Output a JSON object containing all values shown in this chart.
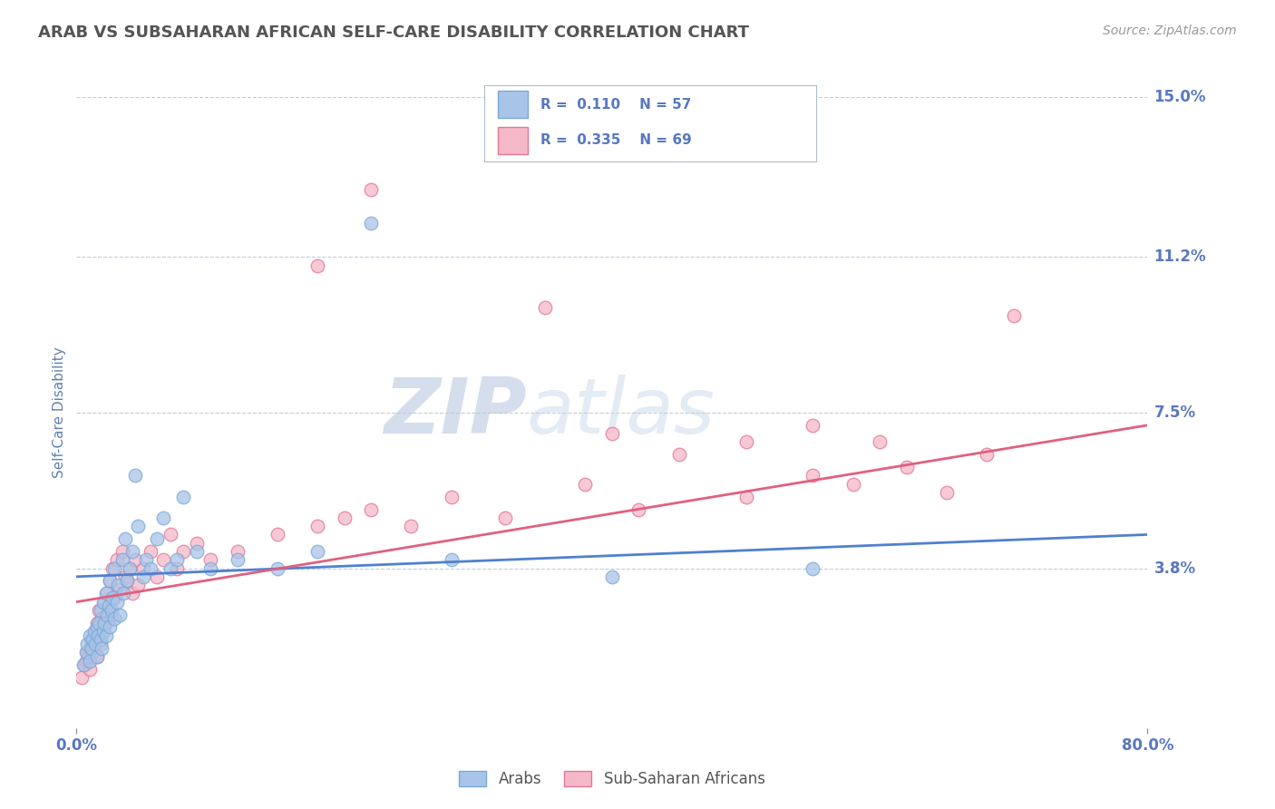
{
  "title": "ARAB VS SUBSAHARAN AFRICAN SELF-CARE DISABILITY CORRELATION CHART",
  "source_text": "Source: ZipAtlas.com",
  "ylabel": "Self-Care Disability",
  "xlim": [
    0.0,
    0.8
  ],
  "ylim": [
    0.0,
    0.15
  ],
  "yticks": [
    0.038,
    0.075,
    0.112,
    0.15
  ],
  "ytick_labels": [
    "3.8%",
    "7.5%",
    "11.2%",
    "15.0%"
  ],
  "xticks": [
    0.0,
    0.8
  ],
  "xtick_labels": [
    "0.0%",
    "80.0%"
  ],
  "arab_color": "#a8c4e8",
  "arab_edge": "#7aaad8",
  "subsaharan_color": "#f5b8c8",
  "subsaharan_edge": "#e07898",
  "line_arab": "#5080d0",
  "line_sub": "#e06080",
  "arab_R": 0.11,
  "arab_N": 57,
  "subsaharan_R": 0.335,
  "subsaharan_N": 69,
  "legend_label_arab": "Arabs",
  "legend_label_subsaharan": "Sub-Saharan Africans",
  "watermark_zip": "ZIP",
  "watermark_atlas": "atlas",
  "background_color": "#ffffff",
  "grid_color": "#c0ccdd",
  "title_color": "#555555",
  "axis_label_color": "#6080b0",
  "tick_label_color": "#5878c0",
  "source_color": "#999999",
  "arab_scatter_x": [
    0.005,
    0.007,
    0.008,
    0.01,
    0.01,
    0.011,
    0.012,
    0.013,
    0.014,
    0.015,
    0.015,
    0.016,
    0.017,
    0.018,
    0.018,
    0.019,
    0.02,
    0.02,
    0.021,
    0.022,
    0.022,
    0.023,
    0.024,
    0.025,
    0.025,
    0.026,
    0.027,
    0.028,
    0.028,
    0.03,
    0.031,
    0.032,
    0.034,
    0.035,
    0.036,
    0.038,
    0.04,
    0.042,
    0.044,
    0.046,
    0.05,
    0.052,
    0.055,
    0.06,
    0.065,
    0.07,
    0.075,
    0.08,
    0.09,
    0.1,
    0.12,
    0.15,
    0.18,
    0.22,
    0.28,
    0.4,
    0.55
  ],
  "arab_scatter_y": [
    0.015,
    0.018,
    0.02,
    0.016,
    0.022,
    0.019,
    0.021,
    0.023,
    0.02,
    0.017,
    0.024,
    0.022,
    0.025,
    0.021,
    0.028,
    0.019,
    0.023,
    0.03,
    0.025,
    0.022,
    0.032,
    0.027,
    0.029,
    0.024,
    0.035,
    0.028,
    0.031,
    0.026,
    0.038,
    0.03,
    0.034,
    0.027,
    0.04,
    0.032,
    0.045,
    0.035,
    0.038,
    0.042,
    0.06,
    0.048,
    0.036,
    0.04,
    0.038,
    0.045,
    0.05,
    0.038,
    0.04,
    0.055,
    0.042,
    0.038,
    0.04,
    0.038,
    0.042,
    0.12,
    0.04,
    0.036,
    0.038
  ],
  "subsaharan_scatter_x": [
    0.004,
    0.006,
    0.007,
    0.008,
    0.009,
    0.01,
    0.01,
    0.011,
    0.012,
    0.013,
    0.014,
    0.015,
    0.015,
    0.016,
    0.017,
    0.018,
    0.019,
    0.02,
    0.021,
    0.022,
    0.023,
    0.024,
    0.025,
    0.026,
    0.027,
    0.028,
    0.03,
    0.032,
    0.034,
    0.036,
    0.038,
    0.04,
    0.042,
    0.044,
    0.046,
    0.05,
    0.055,
    0.06,
    0.065,
    0.07,
    0.075,
    0.08,
    0.09,
    0.1,
    0.12,
    0.15,
    0.18,
    0.2,
    0.22,
    0.25,
    0.28,
    0.32,
    0.38,
    0.42,
    0.45,
    0.5,
    0.55,
    0.58,
    0.62,
    0.65,
    0.68,
    0.7,
    0.35,
    0.4,
    0.5,
    0.55,
    0.6,
    0.18,
    0.22
  ],
  "subsaharan_scatter_y": [
    0.012,
    0.015,
    0.016,
    0.018,
    0.017,
    0.014,
    0.019,
    0.021,
    0.018,
    0.02,
    0.023,
    0.017,
    0.025,
    0.022,
    0.028,
    0.02,
    0.026,
    0.024,
    0.03,
    0.025,
    0.032,
    0.028,
    0.035,
    0.027,
    0.038,
    0.031,
    0.04,
    0.033,
    0.042,
    0.036,
    0.035,
    0.038,
    0.032,
    0.04,
    0.034,
    0.038,
    0.042,
    0.036,
    0.04,
    0.046,
    0.038,
    0.042,
    0.044,
    0.04,
    0.042,
    0.046,
    0.048,
    0.05,
    0.052,
    0.048,
    0.055,
    0.05,
    0.058,
    0.052,
    0.065,
    0.055,
    0.06,
    0.058,
    0.062,
    0.056,
    0.065,
    0.098,
    0.1,
    0.07,
    0.068,
    0.072,
    0.068,
    0.11,
    0.128
  ]
}
